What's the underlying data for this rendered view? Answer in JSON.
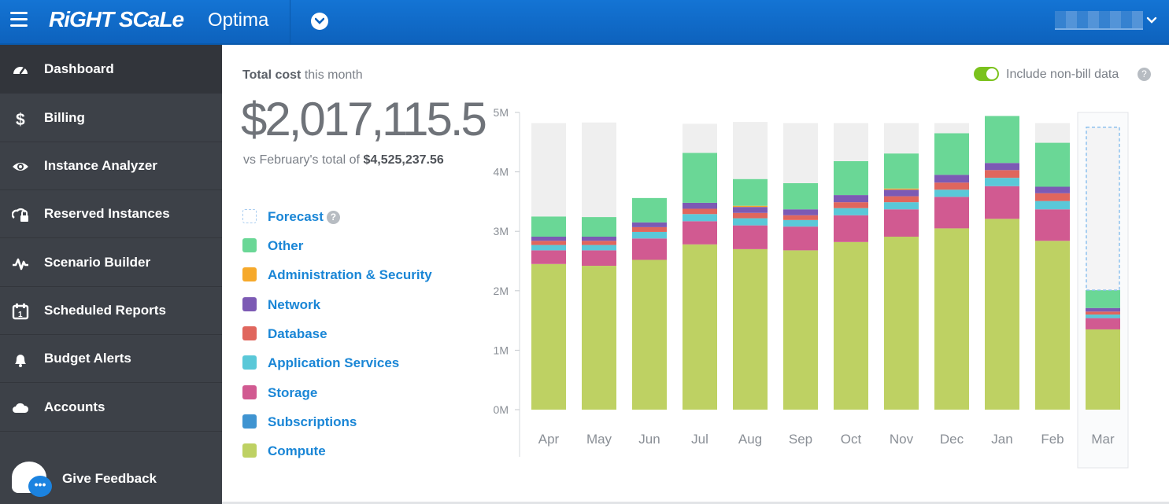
{
  "app": {
    "brand": "RiGHT SCaLe",
    "product": "Optima",
    "icons": {
      "menu": "hamburger-icon",
      "nav_dropdown": "chevron-down-icon",
      "user_menu": "chevron-down-icon"
    }
  },
  "sidebar": {
    "items": [
      {
        "label": "Dashboard",
        "icon": "gauge-icon",
        "active": true
      },
      {
        "label": "Billing",
        "icon": "dollar-icon"
      },
      {
        "label": "Instance Analyzer",
        "icon": "eye-icon"
      },
      {
        "label": "Reserved Instances",
        "icon": "lock-cloud-icon"
      },
      {
        "label": "Scenario Builder",
        "icon": "pulse-icon"
      },
      {
        "label": "Scheduled Reports",
        "icon": "calendar-icon"
      },
      {
        "label": "Budget Alerts",
        "icon": "bell-icon"
      },
      {
        "label": "Accounts",
        "icon": "cloud-icon"
      }
    ],
    "feedback": {
      "label": "Give Feedback",
      "icon": "chat-bubble-icon",
      "badge": "•••"
    }
  },
  "summary": {
    "heading_bold": "Total cost",
    "heading_rest": " this month",
    "total": "$2,017,115.5",
    "compare_prefix": "vs February's total of ",
    "compare_value": "$4,525,237.56"
  },
  "toggle": {
    "label": "Include non-bill data",
    "on": true,
    "color": "#7bc21d"
  },
  "legend": [
    {
      "label": "Forecast",
      "color": "#a9cdf0",
      "dashed": true,
      "help": "?"
    },
    {
      "label": "Other",
      "color": "#6ad796"
    },
    {
      "label": "Administration & Security",
      "color": "#f6a92b"
    },
    {
      "label": "Network",
      "color": "#7c5ab4"
    },
    {
      "label": "Database",
      "color": "#e0665d"
    },
    {
      "label": "Application Services",
      "color": "#5ac8d8"
    },
    {
      "label": "Storage",
      "color": "#d15a91"
    },
    {
      "label": "Subscriptions",
      "color": "#3f94d1"
    },
    {
      "label": "Compute",
      "color": "#bed163"
    }
  ],
  "chart_data": {
    "type": "bar",
    "stacked": true,
    "y_ticks": [
      "0M",
      "1M",
      "2M",
      "3M",
      "4M",
      "5M"
    ],
    "ylim": [
      0,
      5000000
    ],
    "grid": false,
    "categories": [
      "Apr",
      "May",
      "Jun",
      "Jul",
      "Aug",
      "Sep",
      "Oct",
      "Nov",
      "Dec",
      "Jan",
      "Feb",
      "Mar"
    ],
    "highlighted_category": "Mar",
    "series": [
      {
        "name": "Compute",
        "color": "#bed163",
        "values": [
          2450000,
          2420000,
          2520000,
          2780000,
          2700000,
          2680000,
          2820000,
          2910000,
          3050000,
          3210000,
          2840000,
          1350000
        ]
      },
      {
        "name": "Subscriptions",
        "color": "#3f94d1",
        "values": [
          0,
          0,
          0,
          0,
          0,
          0,
          0,
          0,
          0,
          0,
          0,
          0
        ]
      },
      {
        "name": "Storage",
        "color": "#d15a91",
        "values": [
          230000,
          260000,
          360000,
          390000,
          400000,
          400000,
          450000,
          460000,
          530000,
          550000,
          530000,
          190000
        ]
      },
      {
        "name": "Application Services",
        "color": "#5ac8d8",
        "values": [
          90000,
          90000,
          110000,
          120000,
          120000,
          110000,
          120000,
          120000,
          120000,
          140000,
          140000,
          60000
        ]
      },
      {
        "name": "Database",
        "color": "#e0665d",
        "values": [
          70000,
          70000,
          80000,
          90000,
          90000,
          80000,
          100000,
          100000,
          120000,
          130000,
          130000,
          50000
        ]
      },
      {
        "name": "Network",
        "color": "#7c5ab4",
        "values": [
          70000,
          70000,
          80000,
          100000,
          100000,
          100000,
          120000,
          110000,
          130000,
          120000,
          110000,
          60000
        ]
      },
      {
        "name": "Administration & Security",
        "color": "#f6a92b",
        "values": [
          0,
          0,
          0,
          0,
          20000,
          0,
          0,
          20000,
          0,
          0,
          0,
          0
        ]
      },
      {
        "name": "Other",
        "color": "#6ad796",
        "values": [
          340000,
          330000,
          410000,
          840000,
          450000,
          440000,
          570000,
          590000,
          700000,
          790000,
          740000,
          300000
        ]
      },
      {
        "name": "Forecast",
        "color": "#efefef",
        "values": [
          1570000,
          1590000,
          0,
          490000,
          960000,
          1010000,
          640000,
          510000,
          170000,
          0,
          330000,
          2740000
        ]
      }
    ]
  }
}
